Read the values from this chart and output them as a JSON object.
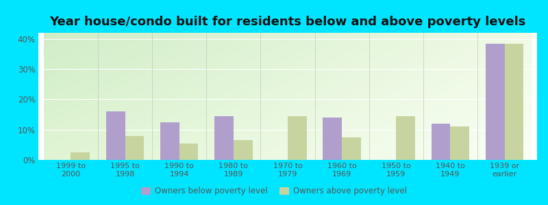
{
  "title": "Year house/condo built for residents below and above poverty levels",
  "categories": [
    "1999 to\n2000",
    "1995 to\n1998",
    "1990 to\n1994",
    "1980 to\n1989",
    "1970 to\n1979",
    "1960 to\n1969",
    "1950 to\n1959",
    "1940 to\n1949",
    "1939 or\nearlier"
  ],
  "below_poverty": [
    0.0,
    16.0,
    12.5,
    14.5,
    0.0,
    14.0,
    0.0,
    12.0,
    38.5
  ],
  "above_poverty": [
    2.5,
    8.0,
    5.5,
    6.5,
    14.5,
    7.5,
    14.5,
    11.0,
    38.5
  ],
  "below_color": "#b09fcc",
  "above_color": "#c8d4a0",
  "ylim": [
    0,
    42
  ],
  "yticks": [
    0,
    10,
    20,
    30,
    40
  ],
  "ytick_labels": [
    "0%",
    "10%",
    "20%",
    "30%",
    "40%"
  ],
  "outer_background": "#00e5ff",
  "bar_width": 0.35,
  "title_fontsize": 13,
  "legend_below": "Owners below poverty level",
  "legend_above": "Owners above poverty level"
}
